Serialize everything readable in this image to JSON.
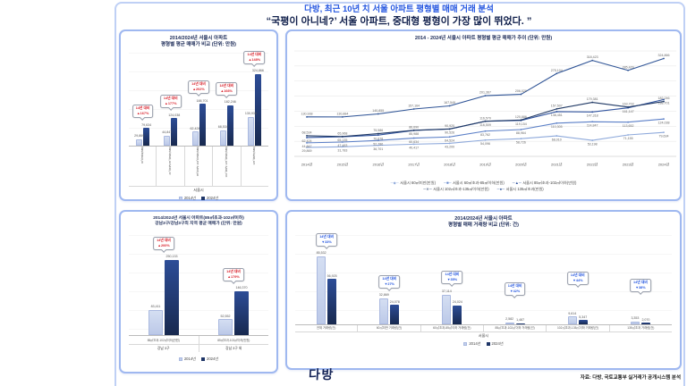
{
  "header": {
    "line1": "다방, 최근 10년 치 서울 아파트 평형별 매매 거래 분석",
    "line2": "“국평이 아니네?’ 서울 아파트, 중대형 평형이 가장 많이 뛰었다. ”"
  },
  "legend": {
    "y2014": "2014년",
    "y2024": "2024년"
  },
  "colors": {
    "headline_blue": "#2456e0",
    "headline_navy": "#101f4b",
    "bar_2014": "#c3cfec",
    "bar_2024": "#1e3567",
    "increase_red": "#d9232d",
    "decrease_blue": "#2456e0",
    "panel_border": "#9fb8f0",
    "line_series": [
      "#8ea9db",
      "#5b7fc7",
      "#31549f",
      "#1f3864",
      "#2f5496"
    ]
  },
  "chart_data": [
    {
      "type": "bar",
      "title_lines": [
        "2014/2024년 서울시 아파트",
        "평형별 평균 매매가 비교 (단위: 만원)"
      ],
      "categories": [
        "60㎡미만(만원)",
        "60㎡초과-85㎡이하(만원)",
        "85㎡초과-102㎡이하(만원)",
        "102㎡초과-135㎡이하(만원)",
        "135㎡초과(만원)"
      ],
      "series": [
        {
          "name": "2014년",
          "values": [
            29869,
            44847,
            62424,
            68534,
            130938
          ]
        },
        {
          "name": "2024년",
          "values": [
            79634,
            124038,
            188701,
            182246,
            324866
          ]
        }
      ],
      "callout_prefix": "14년 대비",
      "callouts": [
        "▲167%",
        "▲177%",
        "▲202%",
        "▲166%",
        "▲148%"
      ],
      "group_label": "서울시",
      "ylim": [
        0,
        324866
      ]
    },
    {
      "type": "line",
      "title": "2014 - 2024년 서울시 아파트 평형별 평균 매매가 추이 (단위: 만원)",
      "x": [
        "2014년",
        "2015년",
        "2016년",
        "2017년",
        "2018년",
        "2019년",
        "2020년",
        "2021년",
        "2022년",
        "2023년",
        "2024년"
      ],
      "series": [
        {
          "name": "서울시 60㎡미만(만원)",
          "values": [
            29869,
            31783,
            36701,
            40417,
            43200,
            54096,
            58726,
            68010,
            53198,
            71155,
            79634
          ]
        },
        {
          "name": "서울시 60㎡초과-85㎡이하(만원)",
          "values": [
            44847,
            47483,
            52786,
            60634,
            64524,
            83762,
            88964,
            110305,
            114847,
            113652,
            124038
          ]
        },
        {
          "name": "서울시 85㎡초과-102㎡이하(만원)",
          "values": [
            62424,
            65135,
            70678,
            85988,
            90526,
            116509,
            119154,
            148451,
            147318,
            161147,
            188701
          ]
        },
        {
          "name": "서울시 102㎡초과-135㎡이하(만원)",
          "values": [
            68534,
            65968,
            75586,
            86690,
            90920,
            116570,
            120886,
            157507,
            179381,
            163703,
            182246
          ]
        },
        {
          "name": "서울시 135㎡초과(만원)",
          "values": [
            130938,
            130884,
            140855,
            157164,
            167549,
            201367,
            206020,
            275104,
            318423,
            285429,
            324866
          ]
        }
      ],
      "ylim": [
        0,
        350000
      ],
      "grid_step": 50000,
      "legend_position": "bottom"
    },
    {
      "type": "bar",
      "title_lines": [
        "2014/2024년 서울시 아파트(85㎡초과-102㎡이하)",
        "강남3구/강남3구외 지역 평균 매매가 (단위: 만원)"
      ],
      "categories": [
        "85㎡초과-102㎡이하(만원)",
        "85㎡초과-102㎡이하(만원)"
      ],
      "sub_categories": [
        "강남 3구",
        "강남 3구 외"
      ],
      "series": [
        {
          "name": "2014년",
          "values": [
            83411,
            52552
          ]
        },
        {
          "name": "2024년",
          "values": [
            250133,
            146370
          ]
        }
      ],
      "callout_prefix": "14년 대비",
      "callouts": [
        "▲200%",
        "▲179%"
      ],
      "ylim": [
        0,
        250133
      ]
    },
    {
      "type": "bar",
      "title_lines": [
        "2014/2024년 서울시 아파트",
        "평형별 매매 거래량 비교 (단위: 건)"
      ],
      "categories": [
        "전체 거래량(건)",
        "60㎡미만 거래량(건)",
        "60㎡초과-85㎡이하 거래량(건)",
        "85㎡초과-102㎡이하 거래량(건)",
        "102㎡초과-135㎡이하 거래량(건)",
        "135㎡초과 거래량(건)"
      ],
      "series": [
        {
          "name": "2014년",
          "values": [
            85532,
            32869,
            37114,
            2582,
            9614,
            3353
          ]
        },
        {
          "name": "2024년",
          "values": [
            56925,
            24078,
            24024,
            1487,
            5347,
            2070
          ]
        }
      ],
      "callout_prefix": "14년 대비",
      "callouts": [
        "▼33%",
        "▼27%",
        "▼35%",
        "▼42%",
        "▼44%",
        "▼38%"
      ],
      "group_label": "서울시",
      "ylim": [
        0,
        90000
      ]
    }
  ],
  "footer": {
    "logo": "다방",
    "source": "자료: 다방, 국토교통부 실거래가 공개시스템 분석"
  }
}
